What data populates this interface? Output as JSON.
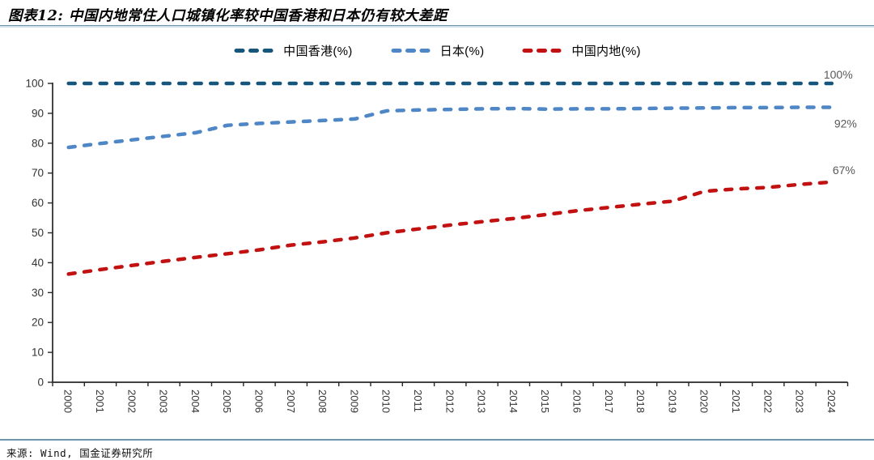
{
  "title": "图表12: 中国内地常住人口城镇化率较中国香港和日本仍有较大差距",
  "source": "来源: Wind, 国金证券研究所",
  "colors": {
    "hongkong": "#16567C",
    "japan": "#4F86C6",
    "mainland": "#C21111",
    "separator": "#6d93ad",
    "axis": "#262626",
    "tick_label": "#333333",
    "end_label": "#595959"
  },
  "chart_data": {
    "type": "line",
    "title": "图表12: 中国内地常住人口城镇化率较中国香港和日本仍有较大差距",
    "xlabel": "",
    "ylabel": "",
    "ylim": [
      0,
      100
    ],
    "ytick_step": 10,
    "grid": false,
    "legend_position": "top",
    "x": [
      2000,
      2001,
      2002,
      2003,
      2004,
      2005,
      2006,
      2007,
      2008,
      2009,
      2010,
      2011,
      2012,
      2013,
      2014,
      2015,
      2016,
      2017,
      2018,
      2019,
      2020,
      2021,
      2022,
      2023,
      2024
    ],
    "series": [
      {
        "name": "中国香港(%)",
        "color": "#16567C",
        "end_label": "100%",
        "values": [
          100,
          100,
          100,
          100,
          100,
          100,
          100,
          100,
          100,
          100,
          100,
          100,
          100,
          100,
          100,
          100,
          100,
          100,
          100,
          100,
          100,
          100,
          100,
          100,
          100
        ]
      },
      {
        "name": "日本(%)",
        "color": "#4F86C6",
        "end_label": "92%",
        "values": [
          78.6,
          79.9,
          81.1,
          82.3,
          83.5,
          86.0,
          86.6,
          87.1,
          87.6,
          88.1,
          90.8,
          91.1,
          91.3,
          91.5,
          91.6,
          91.4,
          91.5,
          91.5,
          91.6,
          91.7,
          91.8,
          91.9,
          91.9,
          92.0,
          92.0
        ]
      },
      {
        "name": "中国内地(%)",
        "color": "#C21111",
        "end_label": "67%",
        "values": [
          36.2,
          37.7,
          39.1,
          40.5,
          41.8,
          43.0,
          44.3,
          45.9,
          47.0,
          48.3,
          50.0,
          51.3,
          52.6,
          53.7,
          54.8,
          56.1,
          57.4,
          58.5,
          59.6,
          60.6,
          63.9,
          64.7,
          65.2,
          66.2,
          67.0
        ]
      }
    ]
  }
}
